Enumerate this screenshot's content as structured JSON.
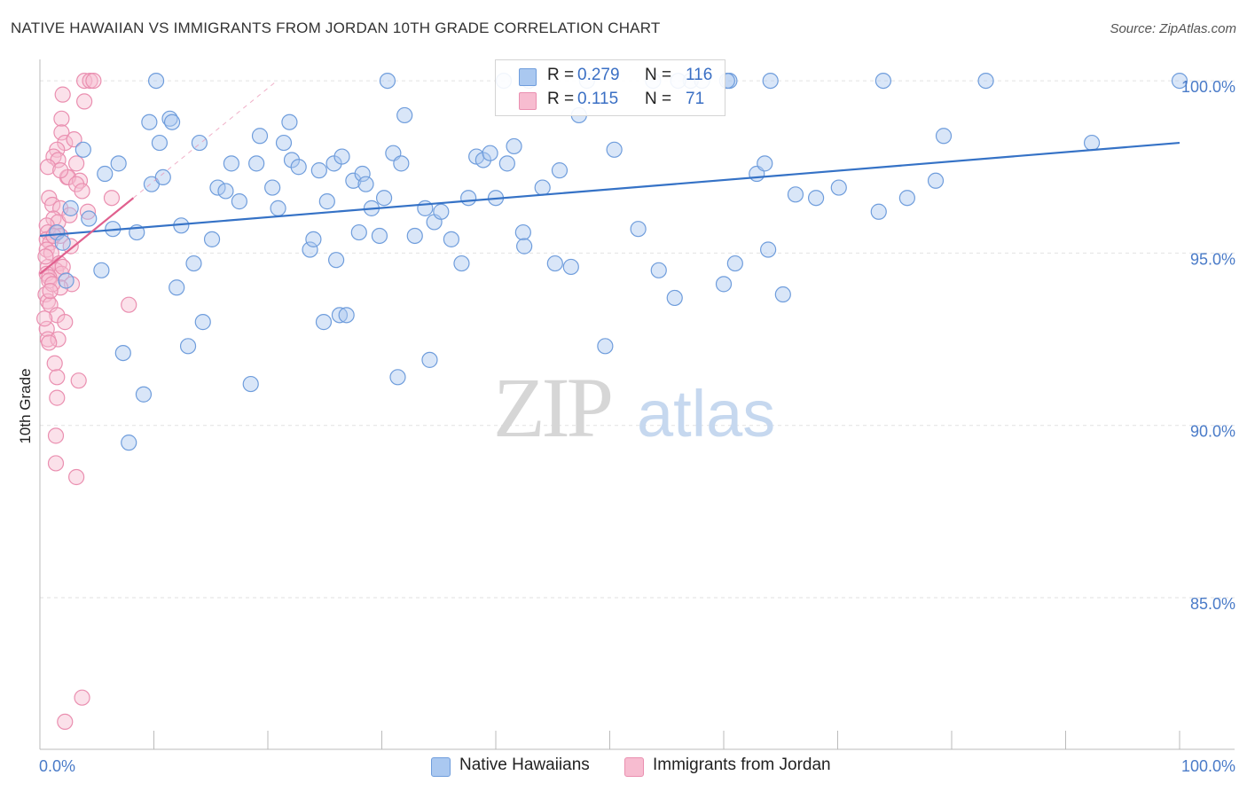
{
  "title": "NATIVE HAWAIIAN VS IMMIGRANTS FROM JORDAN 10TH GRADE CORRELATION CHART",
  "source": "Source: ZipAtlas.com",
  "watermark": {
    "zip": "ZIP",
    "atlas": "atlas"
  },
  "legend": {
    "series1": {
      "r_label": "R =",
      "r_value": "0.279",
      "n_label": "N =",
      "n_value": "116"
    },
    "series2": {
      "r_label": "R =",
      "r_value": "0.115",
      "n_label": "N =",
      "n_value": "71"
    }
  },
  "bottom_legend": [
    "Native Hawaiians",
    "Immigrants from Jordan"
  ],
  "colors": {
    "blue_fill": "#aac8f0",
    "blue_stroke": "#6f9ddc",
    "blue_line": "#3572c6",
    "pink_fill": "#f7bcd0",
    "pink_stroke": "#ea8fb0",
    "pink_line": "#e0608e",
    "grid": "#e2e2e2",
    "tick_text": "#4a7bc8"
  },
  "chart_data": {
    "type": "scatter",
    "title": "NATIVE HAWAIIAN VS IMMIGRANTS FROM JORDAN 10TH GRADE CORRELATION CHART",
    "xlabel": "",
    "ylabel": "10th Grade",
    "xlim": [
      0,
      100
    ],
    "ylim": [
      80.6,
      100.8
    ],
    "x_tick_labels": [
      "0.0%",
      "100.0%"
    ],
    "y_ticks": [
      85,
      90,
      95,
      100
    ],
    "y_tick_labels": [
      "85.0%",
      "90.0%",
      "95.0%",
      "100.0%"
    ],
    "grid": true,
    "series": [
      {
        "name": "Native Hawaiians",
        "R": 0.279,
        "N": 116,
        "trend": {
          "x": [
            0,
            100
          ],
          "y": [
            95.5,
            98.2
          ]
        },
        "points": [
          [
            1.5,
            95.6
          ],
          [
            2,
            95.3
          ],
          [
            2.3,
            94.2
          ],
          [
            2.7,
            96.3
          ],
          [
            3.8,
            98
          ],
          [
            4.3,
            96
          ],
          [
            5.4,
            94.5
          ],
          [
            5.7,
            97.3
          ],
          [
            6.4,
            95.7
          ],
          [
            6.9,
            97.6
          ],
          [
            7.3,
            92.1
          ],
          [
            7.8,
            89.5
          ],
          [
            8.5,
            95.6
          ],
          [
            9.1,
            90.9
          ],
          [
            9.6,
            98.8
          ],
          [
            9.8,
            97
          ],
          [
            10.5,
            98.2
          ],
          [
            10.8,
            97.2
          ],
          [
            11.4,
            98.9
          ],
          [
            11.6,
            98.8
          ],
          [
            12,
            94
          ],
          [
            12.4,
            95.8
          ],
          [
            13,
            92.3
          ],
          [
            13.5,
            94.7
          ],
          [
            14,
            98.2
          ],
          [
            14.3,
            93
          ],
          [
            15.1,
            95.4
          ],
          [
            15.6,
            96.9
          ],
          [
            16.3,
            96.8
          ],
          [
            16.8,
            97.6
          ],
          [
            17.5,
            96.5
          ],
          [
            18.5,
            91.2
          ],
          [
            19,
            97.6
          ],
          [
            19.3,
            98.4
          ],
          [
            20.4,
            96.9
          ],
          [
            20.9,
            96.3
          ],
          [
            21.4,
            98.2
          ],
          [
            21.9,
            98.8
          ],
          [
            22.1,
            97.7
          ],
          [
            22.7,
            97.5
          ],
          [
            23.7,
            95.1
          ],
          [
            24,
            95.4
          ],
          [
            24.5,
            97.4
          ],
          [
            24.9,
            93
          ],
          [
            25.2,
            96.5
          ],
          [
            25.8,
            97.6
          ],
          [
            26,
            94.8
          ],
          [
            26.3,
            93.2
          ],
          [
            26.9,
            93.2
          ],
          [
            27.5,
            97.1
          ],
          [
            28,
            95.6
          ],
          [
            28.3,
            97.3
          ],
          [
            28.6,
            97
          ],
          [
            29.1,
            96.3
          ],
          [
            29.8,
            95.5
          ],
          [
            30.2,
            96.6
          ],
          [
            31,
            97.9
          ],
          [
            31.7,
            97.6
          ],
          [
            32,
            99
          ],
          [
            31.4,
            91.4
          ],
          [
            32.9,
            95.5
          ],
          [
            33.8,
            96.3
          ],
          [
            34.2,
            91.9
          ],
          [
            34.6,
            95.9
          ],
          [
            35.2,
            96.2
          ],
          [
            36.1,
            95.4
          ],
          [
            37,
            94.7
          ],
          [
            37.6,
            96.6
          ],
          [
            38.3,
            97.8
          ],
          [
            38.9,
            97.7
          ],
          [
            39.5,
            97.9
          ],
          [
            40,
            96.6
          ],
          [
            41,
            97.6
          ],
          [
            41.6,
            98.1
          ],
          [
            42.4,
            95.6
          ],
          [
            42.5,
            95.2
          ],
          [
            42.9,
            100
          ],
          [
            45.2,
            94.7
          ],
          [
            45.6,
            97.4
          ],
          [
            46.6,
            94.6
          ],
          [
            47.3,
            99
          ],
          [
            49.6,
            92.3
          ],
          [
            50.4,
            98
          ],
          [
            52.5,
            95.7
          ],
          [
            53.8,
            100
          ],
          [
            54.3,
            94.5
          ],
          [
            55.7,
            93.7
          ],
          [
            57.1,
            100
          ],
          [
            58.1,
            100
          ],
          [
            60,
            94.1
          ],
          [
            60.5,
            100
          ],
          [
            61,
            94.7
          ],
          [
            62.9,
            97.3
          ],
          [
            63.6,
            97.6
          ],
          [
            63.9,
            95.1
          ],
          [
            64.1,
            100
          ],
          [
            65.2,
            93.8
          ],
          [
            66.3,
            96.7
          ],
          [
            68.1,
            96.6
          ],
          [
            70.1,
            96.9
          ],
          [
            73.6,
            96.2
          ],
          [
            74,
            100
          ],
          [
            76.1,
            96.6
          ],
          [
            78.6,
            97.1
          ],
          [
            79.3,
            98.4
          ],
          [
            92.3,
            98.2
          ],
          [
            100,
            100
          ],
          [
            10.2,
            100
          ],
          [
            40.7,
            100
          ],
          [
            56,
            100
          ],
          [
            48,
            100
          ],
          [
            30.5,
            100
          ],
          [
            83,
            100
          ],
          [
            26.5,
            97.8
          ],
          [
            44.1,
            96.9
          ],
          [
            60.3,
            100
          ]
        ]
      },
      {
        "name": "Immigrants from Jordan",
        "R": 0.115,
        "N": 71,
        "trend": {
          "x": [
            0,
            8.2
          ],
          "y": [
            94.4,
            96.6
          ]
        },
        "trend_extension": {
          "x": [
            8.2,
            20.8
          ],
          "y": [
            96.6,
            100
          ]
        },
        "points": [
          [
            3.9,
            100
          ],
          [
            4.4,
            100
          ],
          [
            4.7,
            100
          ],
          [
            2,
            99.6
          ],
          [
            3.9,
            99.4
          ],
          [
            1.9,
            98.9
          ],
          [
            1.9,
            98.5
          ],
          [
            2.2,
            98.2
          ],
          [
            3,
            98.3
          ],
          [
            1.5,
            98
          ],
          [
            1.2,
            97.8
          ],
          [
            1.6,
            97.7
          ],
          [
            0.7,
            97.5
          ],
          [
            2.4,
            97.2
          ],
          [
            2.5,
            97.2
          ],
          [
            3.5,
            97.1
          ],
          [
            3.2,
            97
          ],
          [
            3.7,
            96.8
          ],
          [
            6.3,
            96.6
          ],
          [
            0.8,
            96.6
          ],
          [
            1.1,
            96.4
          ],
          [
            1.8,
            96.3
          ],
          [
            4.2,
            96.2
          ],
          [
            1.2,
            96
          ],
          [
            1.6,
            95.9
          ],
          [
            0.6,
            95.8
          ],
          [
            0.7,
            95.6
          ],
          [
            1.4,
            95.6
          ],
          [
            1.8,
            95.5
          ],
          [
            0.6,
            95.4
          ],
          [
            0.9,
            95.3
          ],
          [
            2.7,
            95.2
          ],
          [
            0.6,
            95.1
          ],
          [
            1,
            95
          ],
          [
            1.7,
            94.7
          ],
          [
            0.7,
            94.6
          ],
          [
            1.4,
            94.5
          ],
          [
            0.6,
            94.4
          ],
          [
            1.9,
            94.4
          ],
          [
            0.8,
            94.3
          ],
          [
            0.8,
            94.2
          ],
          [
            2.8,
            94.1
          ],
          [
            1.8,
            94
          ],
          [
            0.5,
            93.8
          ],
          [
            0.7,
            93.6
          ],
          [
            0.9,
            93.5
          ],
          [
            7.8,
            93.5
          ],
          [
            1.5,
            93.2
          ],
          [
            2.2,
            93
          ],
          [
            0.6,
            92.8
          ],
          [
            0.7,
            92.5
          ],
          [
            1.6,
            92.5
          ],
          [
            0.8,
            92.4
          ],
          [
            1.3,
            91.8
          ],
          [
            3.4,
            91.3
          ],
          [
            1.5,
            91.4
          ],
          [
            1.5,
            90.8
          ],
          [
            1.4,
            89.7
          ],
          [
            1.4,
            88.9
          ],
          [
            3.2,
            88.5
          ],
          [
            3.7,
            82.1
          ],
          [
            2.2,
            81.4
          ],
          [
            0.4,
            93.1
          ],
          [
            1.1,
            94.1
          ],
          [
            2.6,
            96.1
          ],
          [
            1.8,
            97.4
          ],
          [
            3.2,
            97.6
          ],
          [
            1.2,
            95.5
          ],
          [
            0.5,
            94.9
          ],
          [
            2,
            94.6
          ],
          [
            0.9,
            93.9
          ]
        ]
      }
    ]
  }
}
